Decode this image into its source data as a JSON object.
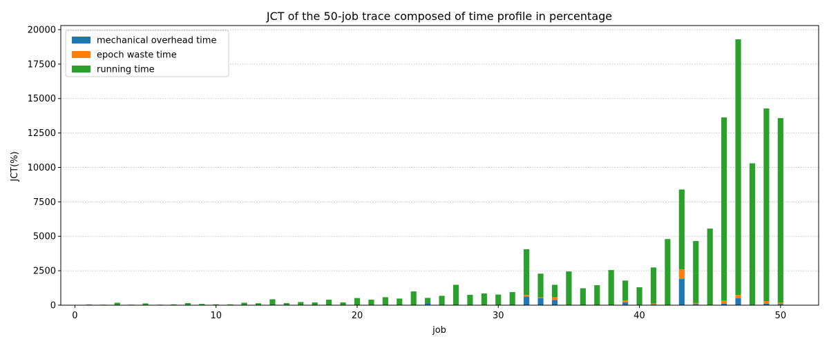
{
  "chart_data": {
    "type": "bar",
    "stacked": true,
    "title": "JCT of the 50-job trace composed of time profile in percentage",
    "xlabel": "job",
    "ylabel": "JCT(%)",
    "xlim": [
      -1,
      52.7
    ],
    "ylim": [
      0,
      20300
    ],
    "xticks": [
      0,
      10,
      20,
      30,
      40,
      50
    ],
    "yticks": [
      0,
      2500,
      5000,
      7500,
      10000,
      12500,
      15000,
      17500,
      20000
    ],
    "grid": "y-dotted",
    "legend_position": "top-left",
    "x": [
      1,
      2,
      3,
      4,
      5,
      6,
      7,
      8,
      9,
      10,
      11,
      12,
      13,
      14,
      15,
      16,
      17,
      18,
      19,
      20,
      21,
      22,
      23,
      24,
      25,
      26,
      27,
      28,
      29,
      30,
      31,
      32,
      33,
      34,
      35,
      36,
      37,
      38,
      39,
      40,
      41,
      42,
      43,
      44,
      45,
      46,
      47,
      48,
      49,
      50
    ],
    "series": [
      {
        "name": "mechanical overhead time",
        "color": "#1f77b4",
        "values": [
          0,
          0,
          0,
          0,
          0,
          0,
          0,
          0,
          0,
          0,
          0,
          0,
          0,
          0,
          0,
          0,
          0,
          0,
          0,
          0,
          0,
          0,
          0,
          0,
          150,
          0,
          0,
          0,
          0,
          0,
          0,
          620,
          500,
          380,
          0,
          0,
          0,
          0,
          200,
          0,
          60,
          0,
          1900,
          80,
          0,
          100,
          500,
          0,
          100,
          80
        ]
      },
      {
        "name": "epoch waste time",
        "color": "#ff7f0e",
        "values": [
          0,
          0,
          0,
          0,
          0,
          0,
          0,
          0,
          0,
          0,
          0,
          0,
          0,
          0,
          0,
          0,
          0,
          0,
          0,
          0,
          0,
          0,
          0,
          0,
          0,
          0,
          0,
          0,
          0,
          0,
          0,
          120,
          60,
          200,
          0,
          0,
          0,
          0,
          150,
          0,
          60,
          0,
          700,
          80,
          0,
          250,
          250,
          0,
          200,
          100
        ]
      },
      {
        "name": "running time",
        "color": "#2ca02c",
        "values": [
          50,
          40,
          180,
          40,
          130,
          40,
          60,
          150,
          90,
          60,
          60,
          180,
          140,
          430,
          150,
          230,
          200,
          400,
          200,
          520,
          400,
          580,
          480,
          1000,
          380,
          680,
          1480,
          750,
          850,
          770,
          950,
          3320,
          1730,
          900,
          2450,
          1230,
          1450,
          2550,
          1440,
          1300,
          2620,
          4800,
          5800,
          4500,
          5560,
          13280,
          18550,
          10300,
          13980,
          13400
        ]
      }
    ]
  }
}
